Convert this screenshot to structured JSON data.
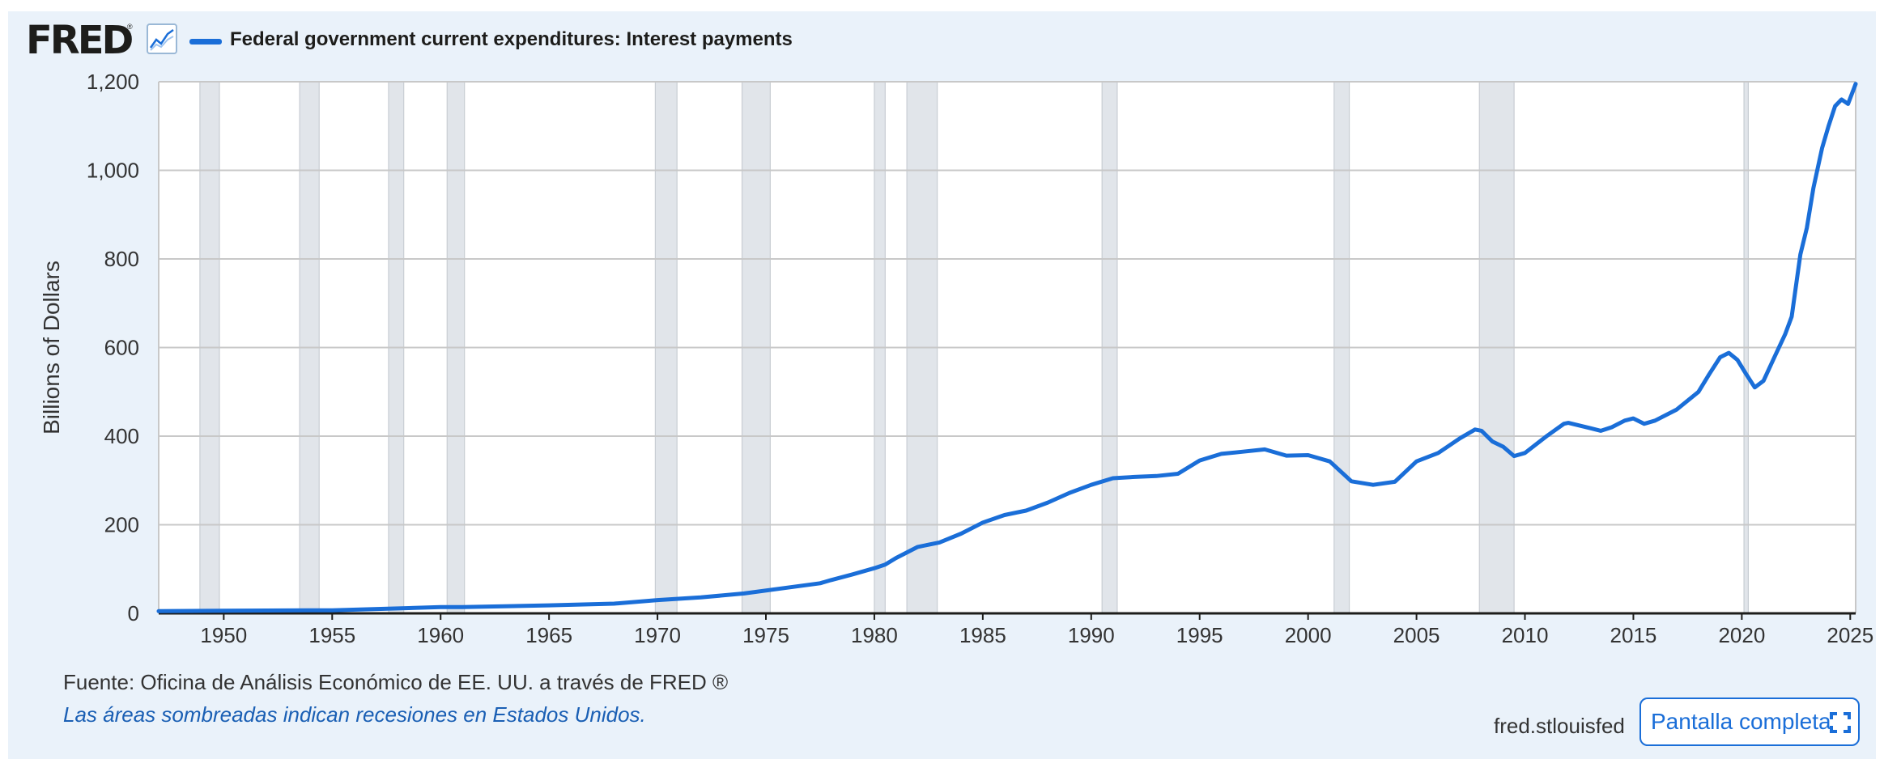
{
  "header": {
    "logo_text": "FRED",
    "logo_mark": "®",
    "graph_icon": "line-chart-icon",
    "legend_label": "Federal government current expenditures: Interest payments",
    "series_color": "#1a6ed8"
  },
  "footer": {
    "source": "Fuente: Oficina de Análisis Económico de EE. UU. a través de FRED ®",
    "recession_note": "Las áreas sombreadas indican recesiones en Estados Unidos.",
    "domain": "fred.stlouisfed",
    "fullscreen_label": "Pantalla completa",
    "fullscreen_icon": "fullscreen-icon"
  },
  "chart_data": {
    "type": "line",
    "ylabel": "Billions of Dollars",
    "xlim": [
      1947.0,
      2025.25
    ],
    "ylim": [
      0,
      1200
    ],
    "y_ticks": [
      0,
      200,
      400,
      600,
      800,
      1000,
      1200
    ],
    "y_tick_labels": [
      "0",
      "200",
      "400",
      "600",
      "800",
      "1,000",
      "1,200"
    ],
    "x_ticks": [
      1950,
      1955,
      1960,
      1965,
      1970,
      1975,
      1980,
      1985,
      1990,
      1995,
      2000,
      2005,
      2010,
      2015,
      2020,
      2025
    ],
    "x_tick_labels": [
      "1950",
      "1955",
      "1960",
      "1965",
      "1970",
      "1975",
      "1980",
      "1985",
      "1990",
      "1995",
      "2000",
      "2005",
      "2010",
      "2015",
      "2020",
      "2025"
    ],
    "grid": true,
    "recession_color": "#e1e5ea",
    "recessions": [
      [
        1948.9,
        1949.8
      ],
      [
        1953.5,
        1954.4
      ],
      [
        1957.6,
        1958.3
      ],
      [
        1960.3,
        1961.1
      ],
      [
        1969.9,
        1970.9
      ],
      [
        1973.9,
        1975.2
      ],
      [
        1980.0,
        1980.5
      ],
      [
        1981.5,
        1982.9
      ],
      [
        1990.5,
        1991.2
      ],
      [
        2001.2,
        2001.9
      ],
      [
        2007.9,
        2009.5
      ],
      [
        2020.1,
        2020.3
      ]
    ],
    "series": [
      {
        "color": "#1a6ed8",
        "x": [
          1947.0,
          1950,
          1955,
          1960,
          1961,
          1965,
          1968,
          1970,
          1972,
          1974,
          1976,
          1977.5,
          1978,
          1979,
          1980,
          1980.5,
          1981,
          1982,
          1983,
          1984,
          1985,
          1986,
          1987,
          1988,
          1989,
          1990,
          1991,
          1992,
          1993,
          1994,
          1995,
          1996,
          1997,
          1998,
          1999,
          2000,
          2001,
          2002,
          2003,
          2004,
          2005,
          2006,
          2007,
          2007.7,
          2008,
          2008.5,
          2009,
          2009.5,
          2010,
          2011,
          2011.8,
          2012,
          2013,
          2013.5,
          2014,
          2014.6,
          2015,
          2015.5,
          2016,
          2017,
          2018,
          2018.5,
          2019,
          2019.4,
          2019.8,
          2020.2,
          2020.6,
          2021,
          2021.5,
          2022,
          2022.3,
          2022.7,
          2023,
          2023.3,
          2023.7,
          2024,
          2024.3,
          2024.6,
          2024.9,
          2025.25
        ],
        "y": [
          5,
          6,
          7,
          14,
          14,
          18,
          22,
          30,
          36,
          45,
          58,
          68,
          75,
          88,
          102,
          110,
          125,
          150,
          160,
          180,
          205,
          222,
          232,
          250,
          272,
          290,
          305,
          308,
          310,
          315,
          345,
          360,
          365,
          370,
          356,
          357,
          343,
          298,
          290,
          297,
          343,
          362,
          395,
          415,
          412,
          388,
          376,
          355,
          362,
          400,
          428,
          430,
          418,
          412,
          420,
          435,
          440,
          428,
          435,
          460,
          500,
          540,
          578,
          588,
          572,
          540,
          510,
          525,
          578,
          630,
          670,
          810,
          870,
          960,
          1050,
          1100,
          1145,
          1160,
          1150,
          1195
        ]
      }
    ]
  }
}
